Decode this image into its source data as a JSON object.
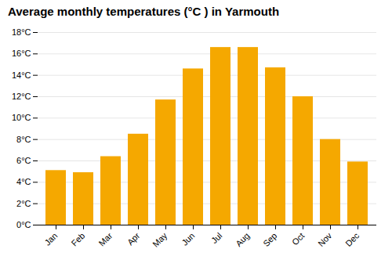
{
  "chart_data": {
    "type": "bar",
    "title": "Average monthly temperatures (°C ) in Yarmouth",
    "categories": [
      "Jan",
      "Feb",
      "Mar",
      "Apr",
      "May",
      "Jun",
      "Jul",
      "Aug",
      "Sep",
      "Oct",
      "Nov",
      "Dec"
    ],
    "values": [
      5.1,
      4.9,
      6.4,
      8.5,
      11.7,
      14.6,
      16.6,
      16.6,
      14.7,
      12.0,
      8.0,
      5.9
    ],
    "color": "#F5A800",
    "ylim": [
      0,
      18
    ],
    "yticks": [
      {
        "value": 0,
        "label": "0°C"
      },
      {
        "value": 2,
        "label": "2°C"
      },
      {
        "value": 4,
        "label": "4°C"
      },
      {
        "value": 6,
        "label": "6°C"
      },
      {
        "value": 8,
        "label": "8°C"
      },
      {
        "value": 10,
        "label": "10°C"
      },
      {
        "value": 12,
        "label": "12°C"
      },
      {
        "value": 14,
        "label": "14°C"
      },
      {
        "value": 16,
        "label": "16°C"
      },
      {
        "value": 18,
        "label": "18°C"
      }
    ],
    "grid": true
  }
}
